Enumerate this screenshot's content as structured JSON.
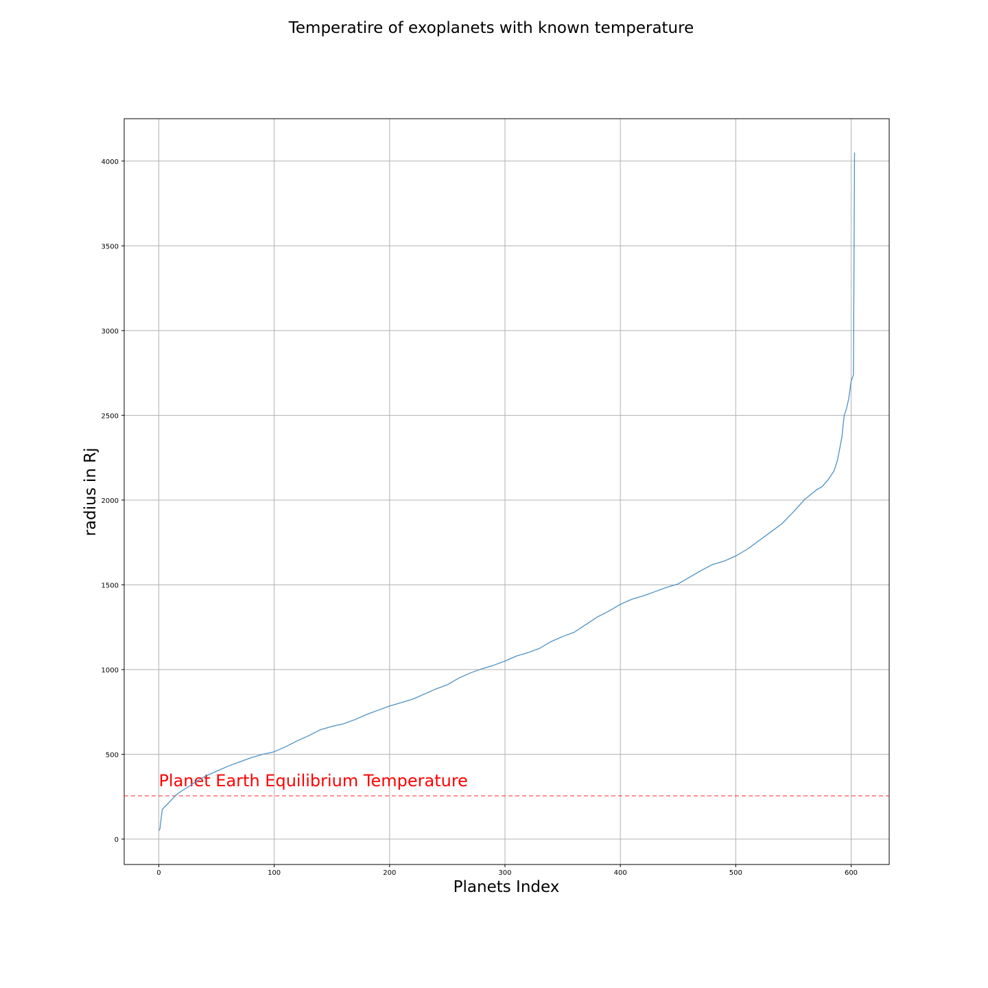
{
  "chart_data": {
    "type": "line",
    "title": "Temperatire of exoplanets with known temperature",
    "xlabel": "Planets Index",
    "ylabel": "radius in Rj",
    "xlim": [
      -30,
      633
    ],
    "ylim": [
      -150,
      4250
    ],
    "xticks": [
      0,
      100,
      200,
      300,
      400,
      500,
      600
    ],
    "yticks": [
      0,
      500,
      1000,
      1500,
      2000,
      2500,
      3000,
      3500,
      4000
    ],
    "grid": true,
    "line_color": "#4a90c4",
    "series": [
      {
        "x": [
          0,
          1,
          2,
          3,
          5,
          8,
          10,
          15,
          20,
          25,
          30,
          35,
          40,
          50,
          60,
          70,
          80,
          90,
          100,
          110,
          120,
          130,
          140,
          150,
          160,
          170,
          180,
          190,
          200,
          210,
          220,
          230,
          240,
          250,
          260,
          270,
          280,
          290,
          300,
          310,
          320,
          330,
          340,
          350,
          360,
          370,
          380,
          390,
          400,
          410,
          420,
          430,
          440,
          450,
          460,
          470,
          480,
          490,
          500,
          510,
          520,
          530,
          540,
          550,
          560,
          570,
          575,
          580,
          585,
          588,
          590,
          592,
          594,
          596,
          598,
          600,
          602,
          603
        ],
        "y": [
          50,
          60,
          120,
          175,
          190,
          210,
          225,
          260,
          285,
          305,
          330,
          350,
          370,
          400,
          430,
          455,
          480,
          500,
          515,
          545,
          580,
          610,
          645,
          665,
          680,
          705,
          735,
          760,
          785,
          805,
          825,
          855,
          885,
          910,
          950,
          980,
          1005,
          1025,
          1050,
          1080,
          1100,
          1125,
          1165,
          1195,
          1220,
          1265,
          1310,
          1345,
          1385,
          1415,
          1435,
          1460,
          1485,
          1505,
          1545,
          1585,
          1620,
          1640,
          1670,
          1710,
          1760,
          1810,
          1860,
          1930,
          2005,
          2060,
          2080,
          2120,
          2170,
          2230,
          2300,
          2370,
          2500,
          2540,
          2600,
          2700,
          2740,
          4050
        ]
      }
    ],
    "reference_line": {
      "y": 255,
      "label": "Planet Earth Equilibrium Temperature",
      "color": "#ff0000"
    }
  }
}
